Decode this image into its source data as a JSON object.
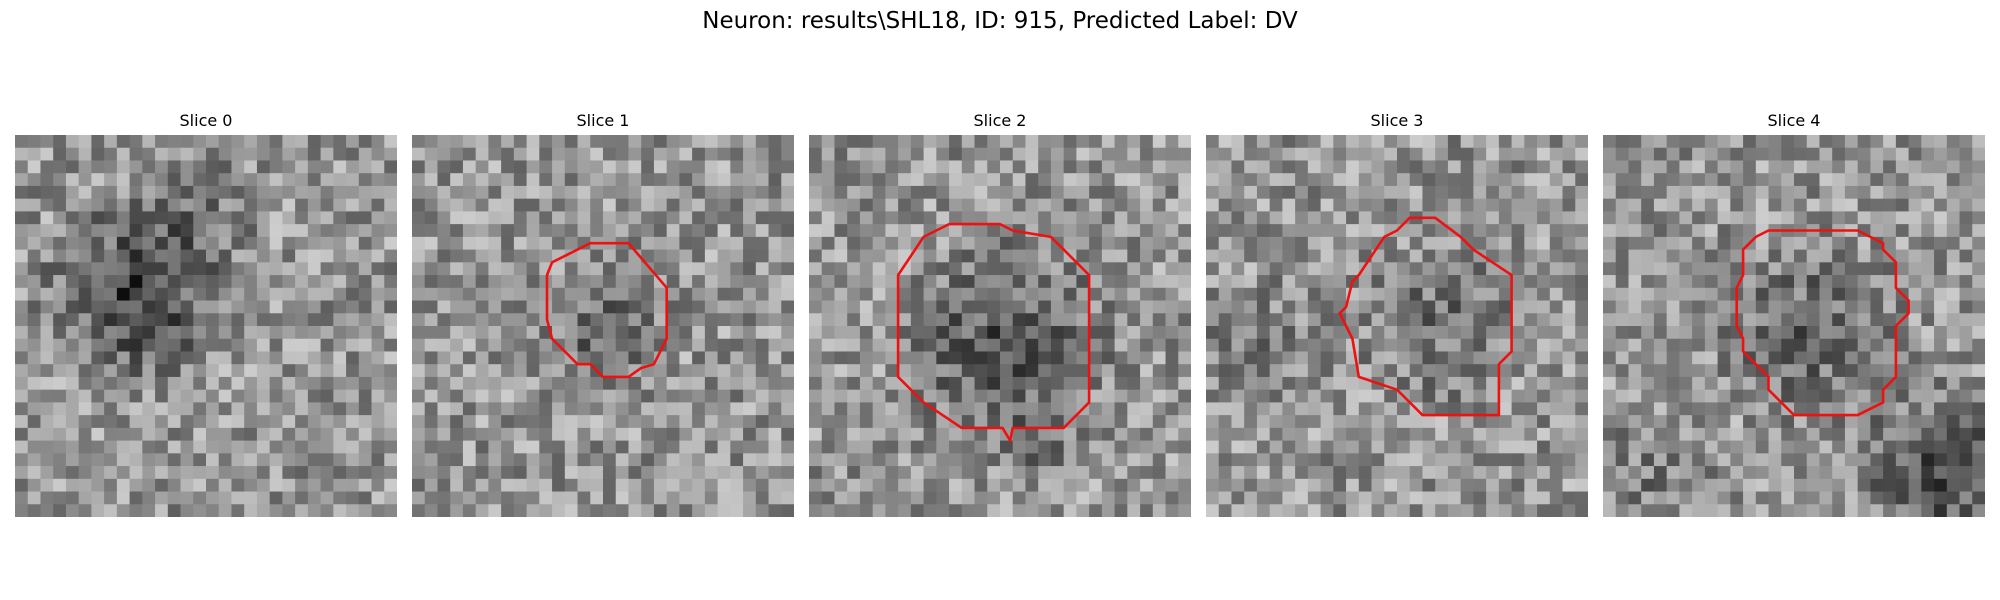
{
  "figure": {
    "title": "Neuron: results\\SHL18, ID: 915, Predicted Label: DV"
  },
  "colors": {
    "background": "#ffffff",
    "contour": "#ee1111",
    "colormap": "gray"
  },
  "panels": [
    {
      "title": "Slice 0",
      "seed": 11,
      "contour": false
    },
    {
      "title": "Slice 1",
      "seed": 23,
      "contour": true
    },
    {
      "title": "Slice 2",
      "seed": 37,
      "contour": true
    },
    {
      "title": "Slice 3",
      "seed": 41,
      "contour": true
    },
    {
      "title": "Slice 4",
      "seed": 53,
      "contour": true
    }
  ]
}
